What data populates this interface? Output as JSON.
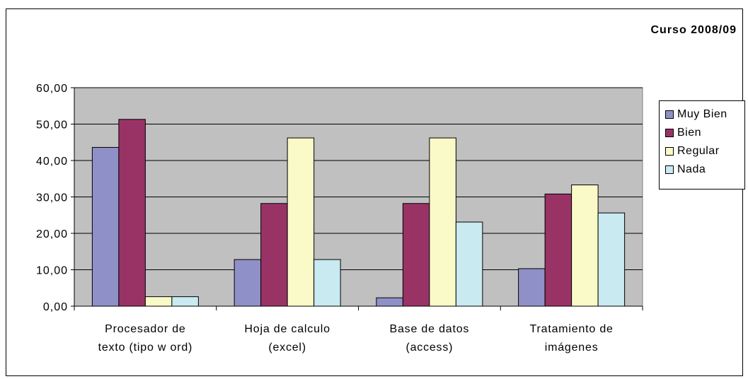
{
  "chart_data": {
    "type": "bar",
    "title": "Curso 2008/09",
    "categories": [
      [
        "Procesador de",
        "texto (tipo w ord)"
      ],
      [
        "Hoja de calculo",
        "(excel)"
      ],
      [
        "Base de datos",
        "(access)"
      ],
      [
        "Tratamiento de",
        "imágenes"
      ]
    ],
    "series": [
      {
        "name": "Muy Bien",
        "color": "#9090c8",
        "values": [
          43.6,
          12.8,
          2.3,
          10.3
        ]
      },
      {
        "name": "Bien",
        "color": "#993366",
        "values": [
          51.3,
          28.2,
          28.2,
          30.8
        ]
      },
      {
        "name": "Regular",
        "color": "#fafac8",
        "values": [
          2.6,
          46.2,
          46.2,
          33.3
        ]
      },
      {
        "name": "Nada",
        "color": "#c8eaf0",
        "values": [
          2.6,
          12.8,
          23.1,
          25.6
        ]
      }
    ],
    "y_ticks": [
      "0,00",
      "10,00",
      "20,00",
      "30,00",
      "40,00",
      "50,00",
      "60,00"
    ],
    "ylim": [
      0,
      60
    ],
    "grid": true,
    "legend_position": "right",
    "plot_background": "#c0c0c0"
  }
}
